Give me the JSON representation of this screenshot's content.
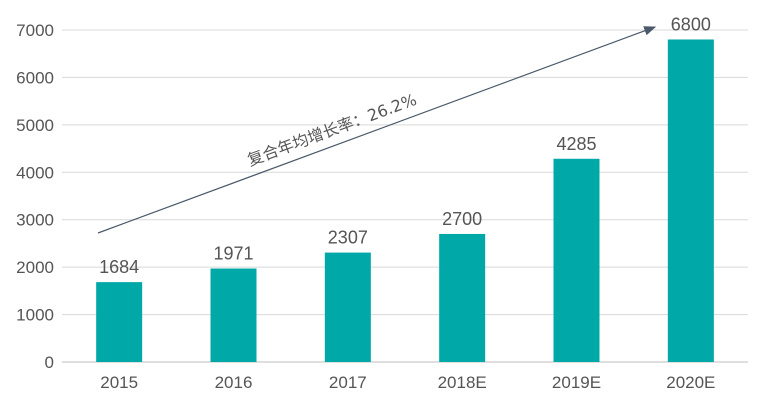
{
  "chart_data": {
    "type": "bar",
    "categories": [
      "2015",
      "2016",
      "2017",
      "2018E",
      "2019E",
      "2020E"
    ],
    "values": [
      1684,
      1971,
      2307,
      2700,
      4285,
      6800
    ],
    "data_labels": [
      "1684",
      "1971",
      "2307",
      "2700",
      "4285",
      "6800"
    ],
    "y_ticks": [
      "0",
      "1000",
      "2000",
      "3000",
      "4000",
      "5000",
      "6000",
      "7000"
    ],
    "ylim": [
      0,
      7000
    ],
    "grid": true,
    "bar_color": "#00a8a8",
    "annotation": {
      "text": "复合年均增长率：26.2%",
      "arrow": true
    }
  }
}
